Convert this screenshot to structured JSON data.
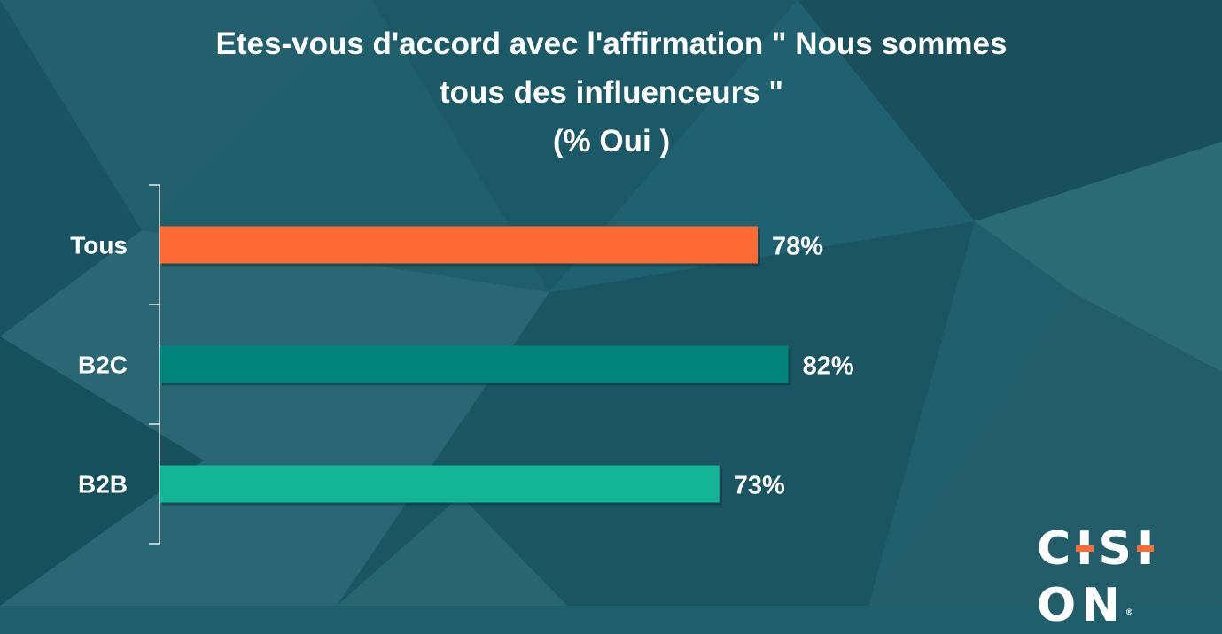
{
  "title_lines": [
    "Etes-vous d'accord avec l'affirmation \" Nous sommes",
    "tous des influenceurs \"",
    "(% Oui )"
  ],
  "chart_data": {
    "type": "bar",
    "orientation": "horizontal",
    "title": "Etes-vous d'accord avec l'affirmation \" Nous sommes tous des influenceurs \" (% Oui )",
    "categories": [
      "Tous",
      "B2C",
      "B2B"
    ],
    "values": [
      78,
      82,
      73
    ],
    "value_labels": [
      "78%",
      "82%",
      "73%"
    ],
    "colors": [
      "#ff6b35",
      "#00847b",
      "#14b596"
    ],
    "xlabel": "",
    "ylabel": "",
    "grid": false,
    "legend": false
  },
  "logo": {
    "text": "CISION",
    "accent_color": "#ff6b35",
    "registered_mark": "®"
  },
  "colors": {
    "background": "#1f5f6b",
    "text": "#ffffff"
  }
}
